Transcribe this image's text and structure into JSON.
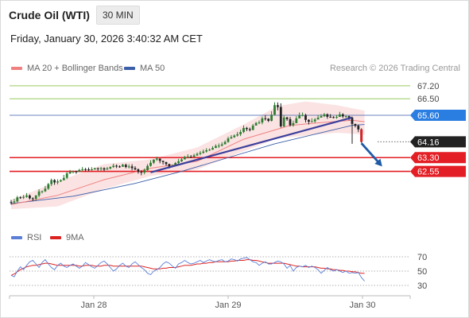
{
  "header": {
    "instrument": "Crude Oil (WTI)",
    "timeframe": "30 MIN",
    "timestamp": "Friday, January 30, 2026 3:40:32 AM CET"
  },
  "legend": {
    "ma20_label": "MA 20 + Bollinger Bands",
    "ma50_label": "MA 50",
    "ma20_color": "#f08080",
    "ma50_color": "#3b5ea8",
    "credit": "Research © 2026 Trading Central"
  },
  "rsi_legend": {
    "rsi_label": "RSI",
    "ma9_label": "9MA",
    "rsi_color": "#5b7fd6",
    "ma9_color": "#dd2222"
  },
  "chart_data": {
    "type": "candlestick",
    "x_ticks": [
      "Jan 28",
      "Jan 29",
      "Jan 30"
    ],
    "price_levels": [
      {
        "value": 67.2,
        "label": "67.20",
        "color": "#8bc34a",
        "kind": "resistance"
      },
      {
        "value": 66.5,
        "label": "66.50",
        "color": "#8bc34a",
        "kind": "resistance"
      },
      {
        "value": 65.6,
        "label": "65.60",
        "color": "#2a7de1",
        "kind": "pivot"
      },
      {
        "value": 64.16,
        "label": "64.16",
        "color": "#222222",
        "kind": "last"
      },
      {
        "value": 63.3,
        "label": "63.30",
        "color": "#e31e24",
        "kind": "support"
      },
      {
        "value": 62.55,
        "label": "62.55",
        "color": "#e31e24",
        "kind": "support"
      }
    ],
    "candles": [
      [
        60.88,
        60.87,
        61.0,
        60.75
      ],
      [
        60.87,
        60.92,
        61.06,
        60.78
      ],
      [
        60.92,
        61.14,
        61.22,
        60.86
      ],
      [
        61.14,
        61.12,
        61.2,
        61.06
      ],
      [
        61.12,
        61.17,
        61.27,
        61.05
      ],
      [
        61.17,
        61.24,
        61.37,
        61.12
      ],
      [
        61.24,
        61.09,
        61.3,
        61.02
      ],
      [
        61.09,
        61.06,
        61.14,
        60.94
      ],
      [
        61.06,
        61.24,
        61.27,
        60.97
      ],
      [
        61.24,
        61.46,
        61.58,
        61.14
      ],
      [
        61.46,
        61.47,
        61.51,
        61.35
      ],
      [
        61.47,
        61.61,
        61.76,
        61.43
      ],
      [
        61.61,
        61.86,
        61.92,
        61.55
      ],
      [
        61.86,
        62.08,
        62.16,
        61.76
      ],
      [
        62.08,
        61.95,
        62.13,
        61.82
      ],
      [
        61.95,
        62.01,
        62.12,
        61.85
      ],
      [
        62.01,
        62.07,
        62.12,
        61.97
      ],
      [
        62.07,
        62.2,
        62.36,
        62.07
      ],
      [
        62.2,
        62.44,
        62.53,
        62.13
      ],
      [
        62.44,
        62.52,
        62.63,
        62.41
      ],
      [
        62.52,
        62.55,
        62.6,
        62.44
      ],
      [
        62.55,
        62.52,
        62.59,
        62.42
      ],
      [
        62.52,
        62.63,
        62.69,
        62.53
      ],
      [
        62.63,
        62.67,
        62.79,
        62.57
      ],
      [
        62.67,
        62.66,
        62.74,
        62.54
      ],
      [
        62.66,
        62.63,
        62.76,
        62.56
      ],
      [
        62.63,
        62.66,
        62.78,
        62.59
      ],
      [
        62.66,
        62.72,
        62.75,
        62.64
      ],
      [
        62.72,
        62.7,
        62.76,
        62.58
      ],
      [
        62.7,
        62.72,
        62.79,
        62.58
      ],
      [
        62.72,
        62.65,
        62.77,
        62.56
      ],
      [
        62.65,
        62.71,
        62.79,
        62.64
      ],
      [
        62.71,
        62.79,
        62.82,
        62.66
      ],
      [
        62.79,
        62.86,
        62.97,
        62.74
      ],
      [
        62.86,
        62.82,
        62.93,
        62.73
      ],
      [
        62.82,
        62.8,
        62.88,
        62.75
      ],
      [
        62.8,
        62.91,
        62.96,
        62.84
      ],
      [
        62.91,
        62.79,
        62.97,
        62.72
      ],
      [
        62.79,
        62.82,
        62.93,
        62.71
      ],
      [
        62.82,
        62.73,
        62.94,
        62.61
      ],
      [
        62.73,
        62.66,
        62.83,
        62.62
      ],
      [
        62.66,
        62.53,
        62.71,
        62.43
      ],
      [
        62.53,
        62.49,
        62.61,
        62.34
      ],
      [
        62.49,
        62.62,
        62.71,
        62.39
      ],
      [
        62.62,
        62.85,
        62.95,
        62.53
      ],
      [
        62.85,
        63.02,
        63.16,
        62.81
      ],
      [
        63.02,
        63.19,
        63.21,
        62.95
      ],
      [
        63.19,
        63.25,
        63.35,
        63.12
      ],
      [
        63.25,
        63.12,
        63.25,
        62.99
      ],
      [
        63.12,
        63.06,
        63.14,
        62.92
      ],
      [
        63.06,
        62.95,
        63.06,
        62.85
      ],
      [
        62.95,
        62.82,
        62.97,
        62.71
      ],
      [
        62.82,
        62.85,
        62.93,
        62.79
      ],
      [
        62.85,
        63.01,
        63.06,
        62.88
      ],
      [
        63.01,
        63.1,
        63.23,
        62.94
      ],
      [
        63.1,
        63.2,
        63.3,
        63.06
      ],
      [
        63.2,
        63.34,
        63.39,
        63.25
      ],
      [
        63.34,
        63.35,
        63.48,
        63.26
      ],
      [
        63.35,
        63.34,
        63.44,
        63.29
      ],
      [
        63.34,
        63.42,
        63.51,
        63.32
      ],
      [
        63.42,
        63.5,
        63.58,
        63.39
      ],
      [
        63.5,
        63.56,
        63.66,
        63.43
      ],
      [
        63.56,
        63.63,
        63.74,
        63.51
      ],
      [
        63.63,
        63.7,
        63.81,
        63.57
      ],
      [
        63.7,
        63.73,
        63.8,
        63.66
      ],
      [
        63.73,
        63.82,
        63.92,
        63.72
      ],
      [
        63.82,
        63.93,
        64.02,
        63.86
      ],
      [
        63.93,
        63.95,
        64.07,
        63.82
      ],
      [
        63.95,
        64.02,
        64.14,
        63.9
      ],
      [
        64.02,
        64.15,
        64.23,
        64.02
      ],
      [
        64.15,
        64.34,
        64.44,
        64.11
      ],
      [
        64.34,
        64.41,
        64.52,
        64.32
      ],
      [
        64.41,
        64.5,
        64.56,
        64.37
      ],
      [
        64.5,
        64.57,
        64.7,
        64.44
      ],
      [
        64.57,
        64.69,
        64.81,
        64.47
      ],
      [
        64.69,
        64.91,
        65.05,
        64.63
      ],
      [
        64.91,
        64.85,
        64.97,
        64.74
      ],
      [
        64.85,
        64.8,
        64.93,
        64.72
      ],
      [
        64.8,
        65.04,
        65.13,
        64.79
      ],
      [
        65.04,
        65.18,
        65.24,
        65.07
      ],
      [
        65.18,
        65.21,
        65.32,
        65.12
      ],
      [
        65.21,
        65.43,
        65.53,
        65.11
      ],
      [
        65.43,
        65.41,
        65.61,
        65.31
      ],
      [
        65.41,
        65.3,
        65.44,
        65.23
      ],
      [
        65.3,
        65.63,
        65.82,
        65.26
      ],
      [
        65.63,
        66.15,
        66.3,
        65.59
      ],
      [
        66.15,
        66.05,
        66.3,
        65.87
      ],
      [
        66.05,
        65.0,
        66.25,
        64.93
      ],
      [
        65.0,
        65.48,
        65.6,
        64.95
      ],
      [
        65.48,
        65.39,
        65.52,
        65.3
      ],
      [
        65.39,
        65.06,
        65.51,
        64.99
      ],
      [
        65.06,
        65.17,
        65.31,
        64.98
      ],
      [
        65.17,
        65.43,
        65.55,
        65.19
      ],
      [
        65.43,
        65.59,
        65.75,
        65.43
      ],
      [
        65.59,
        65.61,
        65.75,
        65.54
      ],
      [
        65.61,
        65.35,
        65.68,
        65.21
      ],
      [
        65.35,
        65.25,
        65.39,
        65.1
      ],
      [
        65.25,
        65.27,
        65.44,
        65.22
      ],
      [
        65.27,
        65.37,
        65.45,
        65.19
      ],
      [
        65.37,
        65.47,
        65.61,
        65.39
      ],
      [
        65.47,
        65.55,
        65.66,
        65.51
      ],
      [
        65.55,
        65.65,
        65.72,
        65.5
      ],
      [
        65.65,
        65.52,
        65.7,
        65.41
      ],
      [
        65.52,
        65.5,
        65.66,
        65.46
      ],
      [
        65.5,
        65.47,
        65.55,
        65.43
      ],
      [
        65.47,
        65.51,
        65.62,
        65.41
      ],
      [
        65.51,
        65.65,
        65.79,
        65.57
      ],
      [
        65.65,
        65.54,
        65.71,
        65.45
      ],
      [
        65.54,
        65.55,
        65.6,
        65.46
      ],
      [
        65.55,
        65.47,
        65.58,
        65.33
      ],
      [
        65.47,
        65.13,
        65.53,
        64.05
      ],
      [
        65.13,
        65.03,
        65.14,
        64.94
      ],
      [
        65.03,
        64.83,
        65.1,
        64.68
      ],
      [
        64.83,
        64.16,
        64.89,
        64.1
      ]
    ],
    "ma20": [
      [
        0,
        60.75
      ],
      [
        15,
        61.25
      ],
      [
        30,
        62.1
      ],
      [
        45,
        62.72
      ],
      [
        60,
        63.1
      ],
      [
        75,
        64.3
      ],
      [
        90,
        65.05
      ],
      [
        100,
        65.2
      ],
      [
        110,
        65.33
      ],
      [
        114,
        65.25
      ]
    ],
    "ma50": [
      [
        0,
        60.8
      ],
      [
        20,
        61.2
      ],
      [
        40,
        61.9
      ],
      [
        55,
        62.55
      ],
      [
        70,
        63.3
      ],
      [
        85,
        64.05
      ],
      [
        100,
        64.65
      ],
      [
        110,
        65.05
      ],
      [
        114,
        65.1
      ]
    ],
    "bb_upper": [
      [
        0,
        61.0
      ],
      [
        15,
        62.0
      ],
      [
        30,
        62.95
      ],
      [
        45,
        63.2
      ],
      [
        60,
        63.85
      ],
      [
        75,
        65.1
      ],
      [
        86,
        66.1
      ],
      [
        95,
        66.35
      ],
      [
        105,
        66.15
      ],
      [
        114,
        65.85
      ]
    ],
    "bb_lower": [
      [
        0,
        60.5
      ],
      [
        15,
        60.65
      ],
      [
        30,
        61.6
      ],
      [
        45,
        62.3
      ],
      [
        60,
        62.65
      ],
      [
        75,
        63.65
      ],
      [
        86,
        64.35
      ],
      [
        95,
        64.5
      ],
      [
        105,
        64.65
      ],
      [
        114,
        64.55
      ]
    ],
    "trendline": [
      [
        45,
        62.5
      ],
      [
        110,
        65.48
      ]
    ],
    "forecast_arrow": [
      [
        113,
        64.08
      ],
      [
        119,
        62.95
      ]
    ],
    "rsi": {
      "ylim": [
        20,
        80
      ],
      "ticks": [
        70,
        50,
        30
      ],
      "rsi_values": [
        44,
        42,
        50,
        56,
        52,
        58,
        63,
        65,
        60,
        55,
        62,
        66,
        60,
        55,
        52,
        58,
        61,
        57,
        55,
        58,
        60,
        57,
        54,
        57,
        62,
        59,
        56,
        54,
        58,
        62,
        64,
        60,
        55,
        50,
        53,
        58,
        61,
        57,
        55,
        60,
        63,
        59,
        55,
        52,
        47,
        45,
        50,
        52,
        55,
        60,
        63,
        61,
        57,
        54,
        60,
        62,
        65,
        62,
        60,
        61,
        63,
        65,
        62,
        64,
        66,
        64,
        63,
        65,
        66,
        63,
        64,
        67,
        66,
        64,
        67,
        68,
        69,
        66,
        63,
        62,
        58,
        61,
        63,
        60,
        60,
        62,
        64,
        63,
        60,
        54,
        58,
        50,
        55,
        57,
        56,
        58,
        55,
        57,
        55,
        52,
        47,
        51,
        55,
        52,
        50,
        52,
        50,
        48,
        50,
        47,
        48,
        47,
        48,
        41,
        36
      ],
      "ma9_values": [
        44,
        46,
        49,
        52,
        54,
        56,
        57,
        58,
        58,
        59,
        60,
        61,
        61,
        60,
        59,
        58,
        58,
        58,
        58,
        58,
        58,
        58,
        57,
        57,
        58,
        58,
        58,
        57,
        57,
        57,
        58,
        58,
        58,
        57,
        57,
        57,
        57,
        57,
        57,
        57,
        57,
        57,
        57,
        56,
        55,
        54,
        53,
        53,
        53,
        54,
        54,
        55,
        55,
        55,
        56,
        57,
        58,
        58,
        58,
        59,
        60,
        60,
        61,
        61,
        62,
        62,
        63,
        63,
        63,
        63,
        63,
        64,
        64,
        65,
        65,
        65,
        66,
        66,
        65,
        65,
        64,
        63,
        62,
        61,
        61,
        61,
        61,
        61,
        61,
        60,
        59,
        58,
        57,
        57,
        56,
        56,
        56,
        56,
        56,
        55,
        54,
        54,
        53,
        53,
        52,
        52,
        51,
        51,
        50,
        50,
        49,
        49,
        48,
        47,
        47
      ]
    }
  }
}
